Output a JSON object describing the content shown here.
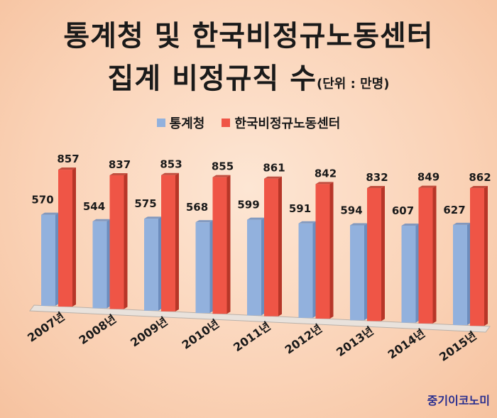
{
  "title": {
    "line1": "통계청 및 한국비정규노동센터",
    "line2": "집계 비정규직 수",
    "unit": "(단위 : 만명)"
  },
  "brand": "중기이코노미",
  "colors": {
    "series1": "#92b1dd",
    "series1_dark": "#6d8dbd",
    "series2": "#ef5546",
    "series2_dark": "#b73628"
  },
  "chart_data": {
    "type": "bar",
    "categories": [
      "2007년",
      "2008년",
      "2009년",
      "2010년",
      "2011년",
      "2012년",
      "2013년",
      "2014년",
      "2015년"
    ],
    "series": [
      {
        "name": "통계청",
        "values": [
          570,
          544,
          575,
          568,
          599,
          591,
          594,
          607,
          627
        ]
      },
      {
        "name": "한국비정규노동센터",
        "values": [
          857,
          837,
          853,
          855,
          861,
          842,
          832,
          849,
          862
        ]
      }
    ],
    "ylim": [
      0,
      900
    ],
    "legend": "top",
    "grid": false
  }
}
